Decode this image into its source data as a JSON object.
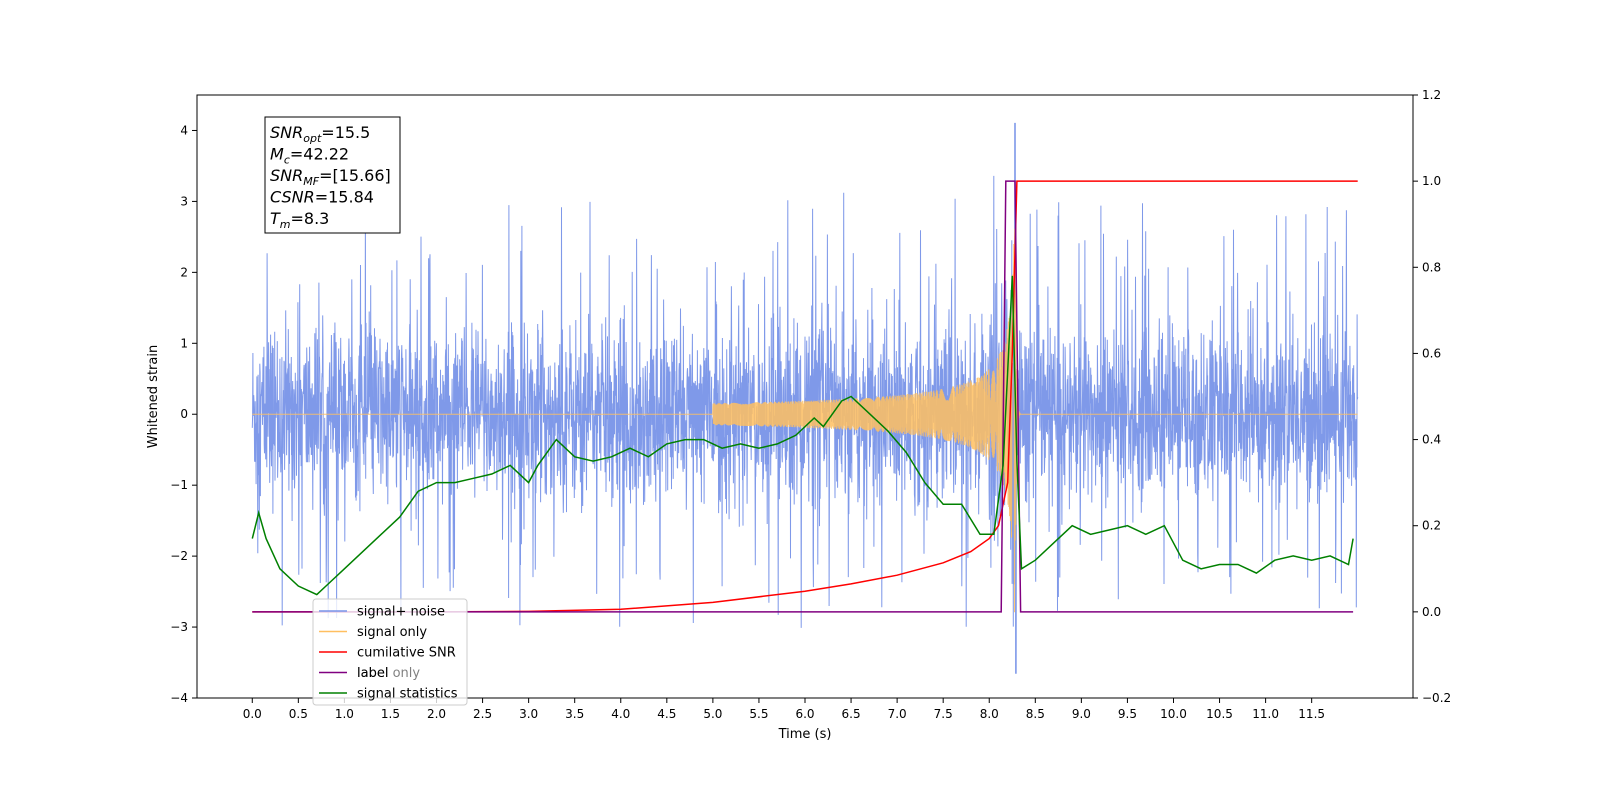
{
  "chart_data": {
    "type": "line",
    "title": "",
    "xlabel": "Time (s)",
    "ylabel_left": "Whitened strain",
    "ylabel_right": "",
    "xlim": [
      -0.6,
      12.6
    ],
    "ylim_left": [
      -4,
      4.5
    ],
    "ylim_right": [
      -0.2,
      1.2
    ],
    "x_ticks": [
      0.0,
      0.5,
      1.0,
      1.5,
      2.0,
      2.5,
      3.0,
      3.5,
      4.0,
      4.5,
      5.0,
      5.5,
      6.0,
      6.5,
      7.0,
      7.5,
      8.0,
      8.5,
      9.0,
      9.5,
      10.0,
      10.5,
      11.0,
      11.5
    ],
    "x_tick_labels": [
      "0.0",
      "0.5",
      "1.0",
      "1.5",
      "2.0",
      "2.5",
      "3.0",
      "3.5",
      "4.0",
      "4.5",
      "5.0",
      "5.5",
      "6.0",
      "6.5",
      "7.0",
      "7.5",
      "8.0",
      "8.5",
      "9.0",
      "9.5",
      "10.0",
      "10.5",
      "11.0",
      "11.5"
    ],
    "y_left_ticks": [
      -4,
      -3,
      -2,
      -1,
      0,
      1,
      2,
      3,
      4
    ],
    "y_left_tick_labels": [
      "−4",
      "−3",
      "−2",
      "−1",
      "0",
      "1",
      "2",
      "3",
      "4"
    ],
    "y_right_ticks": [
      -0.2,
      0.0,
      0.2,
      0.4,
      0.6,
      0.8,
      1.0,
      1.2
    ],
    "y_right_tick_labels": [
      "−0.2",
      "0.0",
      "0.2",
      "0.4",
      "0.6",
      "0.8",
      "1.0",
      "1.2"
    ],
    "grid": false,
    "legend_position": "lower-left",
    "legend": [
      {
        "label": "signal+ noise",
        "color": "#7893e8"
      },
      {
        "label": "signal only",
        "color": "#ffbf60"
      },
      {
        "label": "cumilative SNR",
        "color": "#ff0000"
      },
      {
        "label": "label",
        "color": "#800080"
      },
      {
        "label": "signal statistics",
        "color": "#008000"
      }
    ],
    "legend_hidden_text": "label only",
    "annotation_box": [
      {
        "base": "SNR",
        "sub": "opt",
        "value": "=15.5"
      },
      {
        "base": "M",
        "sub": "c",
        "value": "=42.22"
      },
      {
        "base": "SNR",
        "sub": "MF",
        "value": "=[15.66]"
      },
      {
        "base": "CSNR",
        "sub": "",
        "value": "=15.84"
      },
      {
        "base": "T",
        "sub": "m",
        "value": "=8.3"
      }
    ],
    "series": [
      {
        "name": "signal+ noise",
        "axis": "left",
        "color": "#7893e8",
        "description_range": [
          0,
          12
        ],
        "noise_band": [
          -1.7,
          1.7
        ],
        "peak_max": 4.1,
        "peak_min": -3.65,
        "peak_time": 8.28
      },
      {
        "name": "signal only",
        "axis": "left",
        "color": "#ffbf60",
        "chirp_start": 5.0,
        "merger_time": 8.28,
        "peak_amplitude": 3.3
      },
      {
        "name": "cumilative SNR",
        "axis": "right",
        "color": "#ff0000",
        "x": [
          0.0,
          1.0,
          2.0,
          3.0,
          4.0,
          5.0,
          6.0,
          6.5,
          7.0,
          7.5,
          7.8,
          8.0,
          8.1,
          8.2,
          8.25,
          8.3,
          12.0
        ],
        "y": [
          0.0,
          0.0,
          0.0,
          0.001,
          0.006,
          0.022,
          0.048,
          0.065,
          0.085,
          0.114,
          0.14,
          0.17,
          0.2,
          0.3,
          0.6,
          1.0,
          1.0
        ]
      },
      {
        "name": "label",
        "axis": "right",
        "color": "#800080",
        "x": [
          0.0,
          8.13,
          8.18,
          8.28,
          8.34,
          8.35,
          11.95
        ],
        "y": [
          0.0,
          0.0,
          1.0,
          1.0,
          0.0,
          0.0,
          0.0
        ]
      },
      {
        "name": "signal statistics",
        "axis": "right",
        "color": "#008000",
        "x": [
          0.0,
          0.07,
          0.15,
          0.3,
          0.5,
          0.7,
          0.8,
          1.0,
          1.2,
          1.4,
          1.6,
          1.8,
          2.0,
          2.2,
          2.4,
          2.6,
          2.8,
          3.0,
          3.1,
          3.3,
          3.5,
          3.7,
          3.9,
          4.1,
          4.3,
          4.5,
          4.7,
          4.9,
          5.1,
          5.3,
          5.5,
          5.7,
          5.9,
          6.1,
          6.2,
          6.4,
          6.5,
          6.7,
          6.9,
          7.1,
          7.3,
          7.5,
          7.7,
          7.9,
          8.05,
          8.15,
          8.25,
          8.3,
          8.35,
          8.5,
          8.7,
          8.9,
          9.1,
          9.3,
          9.5,
          9.7,
          9.9,
          10.1,
          10.3,
          10.5,
          10.7,
          10.9,
          11.1,
          11.3,
          11.5,
          11.7,
          11.9,
          11.95
        ],
        "y": [
          0.17,
          0.23,
          0.17,
          0.1,
          0.06,
          0.04,
          0.06,
          0.1,
          0.14,
          0.18,
          0.22,
          0.28,
          0.3,
          0.3,
          0.31,
          0.32,
          0.34,
          0.3,
          0.34,
          0.4,
          0.36,
          0.35,
          0.36,
          0.38,
          0.36,
          0.39,
          0.4,
          0.4,
          0.38,
          0.39,
          0.38,
          0.39,
          0.41,
          0.45,
          0.43,
          0.49,
          0.5,
          0.46,
          0.42,
          0.37,
          0.3,
          0.25,
          0.25,
          0.18,
          0.18,
          0.34,
          0.78,
          0.35,
          0.1,
          0.12,
          0.16,
          0.2,
          0.18,
          0.19,
          0.2,
          0.18,
          0.2,
          0.12,
          0.1,
          0.11,
          0.11,
          0.09,
          0.12,
          0.13,
          0.12,
          0.13,
          0.11,
          0.17
        ]
      }
    ]
  }
}
